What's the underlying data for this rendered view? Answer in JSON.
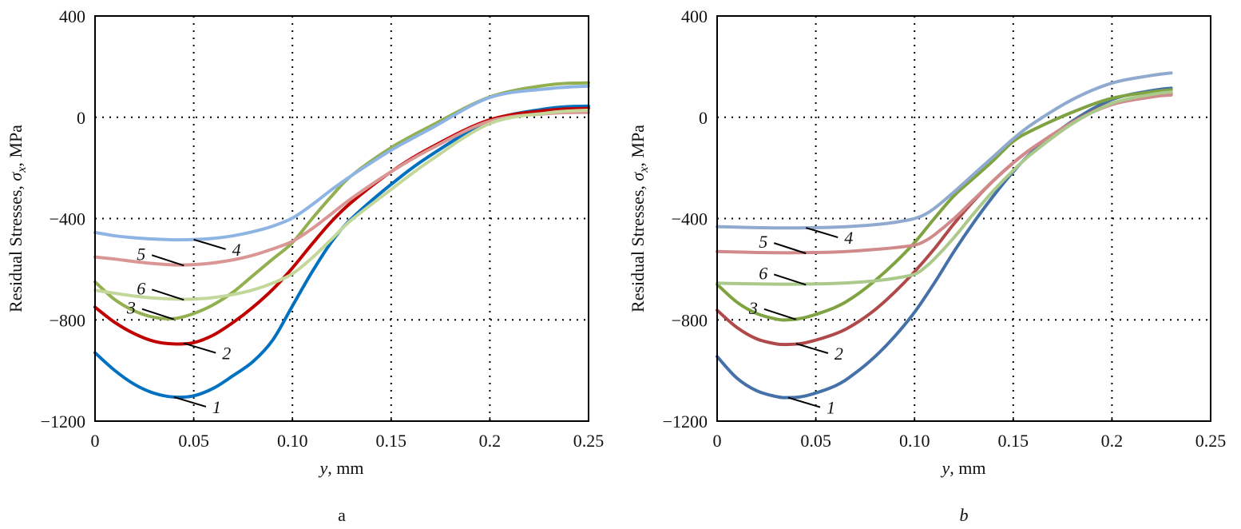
{
  "chart_data": [
    {
      "type": "line",
      "panel_label": "a",
      "xlabel": "y, mm",
      "ylabel": "Residual Stresses, σx, MPa",
      "xlim": [
        0,
        0.25
      ],
      "ylim": [
        -1200,
        400
      ],
      "xticks": [
        "0",
        "0.05",
        "0.10",
        "0.15",
        "0.2",
        "0.25"
      ],
      "xtick_values": [
        0,
        0.05,
        0.1,
        0.15,
        0.2,
        0.25
      ],
      "yticks": [
        "400",
        "0",
        "−400",
        "−800",
        "−1200"
      ],
      "ytick_values": [
        400,
        0,
        -400,
        -800,
        -1200
      ],
      "grid": true,
      "series": [
        {
          "name": "1",
          "color": "#0070C0",
          "x": [
            0,
            0.01,
            0.02,
            0.03,
            0.04,
            0.05,
            0.06,
            0.07,
            0.08,
            0.09,
            0.1,
            0.11,
            0.12,
            0.13,
            0.15,
            0.17,
            0.2,
            0.23,
            0.25
          ],
          "y": [
            -930,
            -1000,
            -1055,
            -1090,
            -1105,
            -1100,
            -1070,
            -1020,
            -965,
            -880,
            -745,
            -610,
            -490,
            -400,
            -265,
            -150,
            -15,
            35,
            44
          ]
        },
        {
          "name": "2",
          "color": "#C00000",
          "x": [
            0,
            0.01,
            0.02,
            0.03,
            0.04,
            0.05,
            0.06,
            0.07,
            0.08,
            0.09,
            0.1,
            0.11,
            0.12,
            0.13,
            0.15,
            0.17,
            0.2,
            0.23,
            0.25
          ],
          "y": [
            -750,
            -810,
            -855,
            -885,
            -895,
            -890,
            -860,
            -810,
            -750,
            -680,
            -595,
            -500,
            -410,
            -335,
            -215,
            -120,
            -10,
            28,
            35
          ]
        },
        {
          "name": "3",
          "color": "#92B050",
          "x": [
            0,
            0.01,
            0.02,
            0.03,
            0.04,
            0.05,
            0.06,
            0.07,
            0.08,
            0.09,
            0.1,
            0.11,
            0.12,
            0.13,
            0.15,
            0.17,
            0.2,
            0.23,
            0.25
          ],
          "y": [
            -650,
            -720,
            -765,
            -790,
            -795,
            -775,
            -740,
            -690,
            -625,
            -560,
            -495,
            -400,
            -310,
            -230,
            -120,
            -35,
            80,
            128,
            136
          ]
        },
        {
          "name": "4",
          "color": "#8DB4E2",
          "x": [
            0,
            0.01,
            0.02,
            0.03,
            0.04,
            0.05,
            0.06,
            0.07,
            0.08,
            0.09,
            0.1,
            0.11,
            0.12,
            0.13,
            0.15,
            0.17,
            0.2,
            0.23,
            0.25
          ],
          "y": [
            -455,
            -468,
            -476,
            -481,
            -484,
            -483,
            -478,
            -468,
            -452,
            -430,
            -398,
            -345,
            -285,
            -230,
            -130,
            -45,
            78,
            113,
            123
          ]
        },
        {
          "name": "5",
          "color": "#DA9694",
          "x": [
            0,
            0.01,
            0.02,
            0.03,
            0.04,
            0.05,
            0.06,
            0.07,
            0.08,
            0.09,
            0.1,
            0.11,
            0.12,
            0.13,
            0.15,
            0.17,
            0.2,
            0.23,
            0.25
          ],
          "y": [
            -552,
            -560,
            -570,
            -578,
            -583,
            -582,
            -575,
            -563,
            -545,
            -520,
            -490,
            -440,
            -380,
            -320,
            -215,
            -125,
            -15,
            15,
            19
          ]
        },
        {
          "name": "6",
          "color": "#C4D79B",
          "x": [
            0,
            0.01,
            0.02,
            0.03,
            0.04,
            0.05,
            0.06,
            0.07,
            0.08,
            0.09,
            0.1,
            0.11,
            0.12,
            0.13,
            0.15,
            0.17,
            0.2,
            0.23,
            0.25
          ],
          "y": [
            -683,
            -695,
            -706,
            -714,
            -718,
            -718,
            -712,
            -700,
            -682,
            -655,
            -618,
            -555,
            -480,
            -405,
            -285,
            -170,
            -25,
            18,
            28
          ]
        }
      ],
      "annotations": [
        {
          "text": "1",
          "series": "1",
          "at_x": 0.04
        },
        {
          "text": "2",
          "series": "2",
          "at_x": 0.045
        },
        {
          "text": "3",
          "series": "3",
          "at_x": 0.04
        },
        {
          "text": "4",
          "series": "4",
          "at_x": 0.05
        },
        {
          "text": "5",
          "series": "5",
          "at_x": 0.045
        },
        {
          "text": "6",
          "series": "6",
          "at_x": 0.045
        }
      ]
    },
    {
      "type": "line",
      "panel_label": "b",
      "xlabel": "y, mm",
      "ylabel": "Residual Stresses, σx, MPa",
      "xlim": [
        0,
        0.25
      ],
      "ylim": [
        -1200,
        400
      ],
      "xticks": [
        "0",
        "0.05",
        "0.10",
        "0.15",
        "0.2",
        "0.25"
      ],
      "xtick_values": [
        0,
        0.05,
        0.1,
        0.15,
        0.2,
        0.25
      ],
      "yticks": [
        "400",
        "0",
        "−400",
        "−800",
        "−1200"
      ],
      "ytick_values": [
        400,
        0,
        -400,
        -800,
        -1200
      ],
      "grid": true,
      "series": [
        {
          "name": "1",
          "color": "#4472A8",
          "x": [
            0,
            0.01,
            0.02,
            0.03,
            0.036,
            0.045,
            0.06,
            0.07,
            0.08,
            0.09,
            0.1,
            0.11,
            0.12,
            0.13,
            0.14,
            0.15,
            0.16,
            0.18,
            0.2,
            0.22,
            0.23
          ],
          "y": [
            -945,
            -1030,
            -1080,
            -1103,
            -1107,
            -1100,
            -1060,
            -1010,
            -945,
            -865,
            -770,
            -655,
            -530,
            -415,
            -310,
            -215,
            -135,
            -15,
            70,
            105,
            115
          ]
        },
        {
          "name": "2",
          "color": "#B04A4A",
          "x": [
            0,
            0.01,
            0.02,
            0.03,
            0.036,
            0.045,
            0.06,
            0.07,
            0.08,
            0.09,
            0.1,
            0.11,
            0.12,
            0.13,
            0.14,
            0.15,
            0.16,
            0.18,
            0.2,
            0.22,
            0.23
          ],
          "y": [
            -762,
            -830,
            -875,
            -895,
            -897,
            -890,
            -855,
            -815,
            -760,
            -690,
            -610,
            -520,
            -420,
            -330,
            -250,
            -180,
            -120,
            -20,
            55,
            85,
            93
          ]
        },
        {
          "name": "3",
          "color": "#7FA340",
          "x": [
            0,
            0.01,
            0.02,
            0.03,
            0.036,
            0.045,
            0.06,
            0.07,
            0.08,
            0.09,
            0.1,
            0.11,
            0.12,
            0.13,
            0.14,
            0.15,
            0.16,
            0.18,
            0.2,
            0.22,
            0.23
          ],
          "y": [
            -660,
            -730,
            -775,
            -797,
            -800,
            -790,
            -750,
            -705,
            -645,
            -575,
            -495,
            -400,
            -310,
            -240,
            -170,
            -95,
            -50,
            20,
            75,
            100,
            108
          ]
        },
        {
          "name": "4",
          "color": "#8FAACE",
          "x": [
            0,
            0.01,
            0.02,
            0.03,
            0.04,
            0.05,
            0.06,
            0.07,
            0.08,
            0.09,
            0.1,
            0.105,
            0.11,
            0.12,
            0.13,
            0.14,
            0.15,
            0.16,
            0.18,
            0.2,
            0.22,
            0.23
          ],
          "y": [
            -432,
            -434,
            -436,
            -437,
            -437,
            -436,
            -434,
            -430,
            -424,
            -415,
            -400,
            -385,
            -360,
            -295,
            -225,
            -155,
            -85,
            -25,
            70,
            135,
            165,
            175
          ]
        },
        {
          "name": "5",
          "color": "#D08A8C",
          "x": [
            0,
            0.01,
            0.02,
            0.03,
            0.04,
            0.05,
            0.06,
            0.07,
            0.08,
            0.09,
            0.1,
            0.105,
            0.11,
            0.12,
            0.13,
            0.14,
            0.15,
            0.16,
            0.18,
            0.2,
            0.22,
            0.23
          ],
          "y": [
            -530,
            -532,
            -534,
            -535,
            -535,
            -534,
            -532,
            -528,
            -522,
            -515,
            -505,
            -490,
            -465,
            -400,
            -325,
            -250,
            -180,
            -120,
            -20,
            50,
            80,
            88
          ]
        },
        {
          "name": "6",
          "color": "#ABC98A",
          "x": [
            0,
            0.01,
            0.02,
            0.03,
            0.04,
            0.05,
            0.06,
            0.07,
            0.08,
            0.09,
            0.1,
            0.105,
            0.11,
            0.12,
            0.13,
            0.14,
            0.15,
            0.16,
            0.18,
            0.2,
            0.22,
            0.23
          ],
          "y": [
            -655,
            -657,
            -658,
            -659,
            -659,
            -658,
            -656,
            -652,
            -646,
            -636,
            -620,
            -595,
            -560,
            -475,
            -380,
            -290,
            -210,
            -140,
            -25,
            55,
            90,
            100
          ]
        }
      ],
      "annotations": [
        {
          "text": "1",
          "series": "1",
          "at_x": 0.036
        },
        {
          "text": "2",
          "series": "2",
          "at_x": 0.04
        },
        {
          "text": "3",
          "series": "3",
          "at_x": 0.04
        },
        {
          "text": "4",
          "series": "4",
          "at_x": 0.045
        },
        {
          "text": "5",
          "series": "5",
          "at_x": 0.045
        },
        {
          "text": "6",
          "series": "6",
          "at_x": 0.045
        }
      ]
    }
  ]
}
